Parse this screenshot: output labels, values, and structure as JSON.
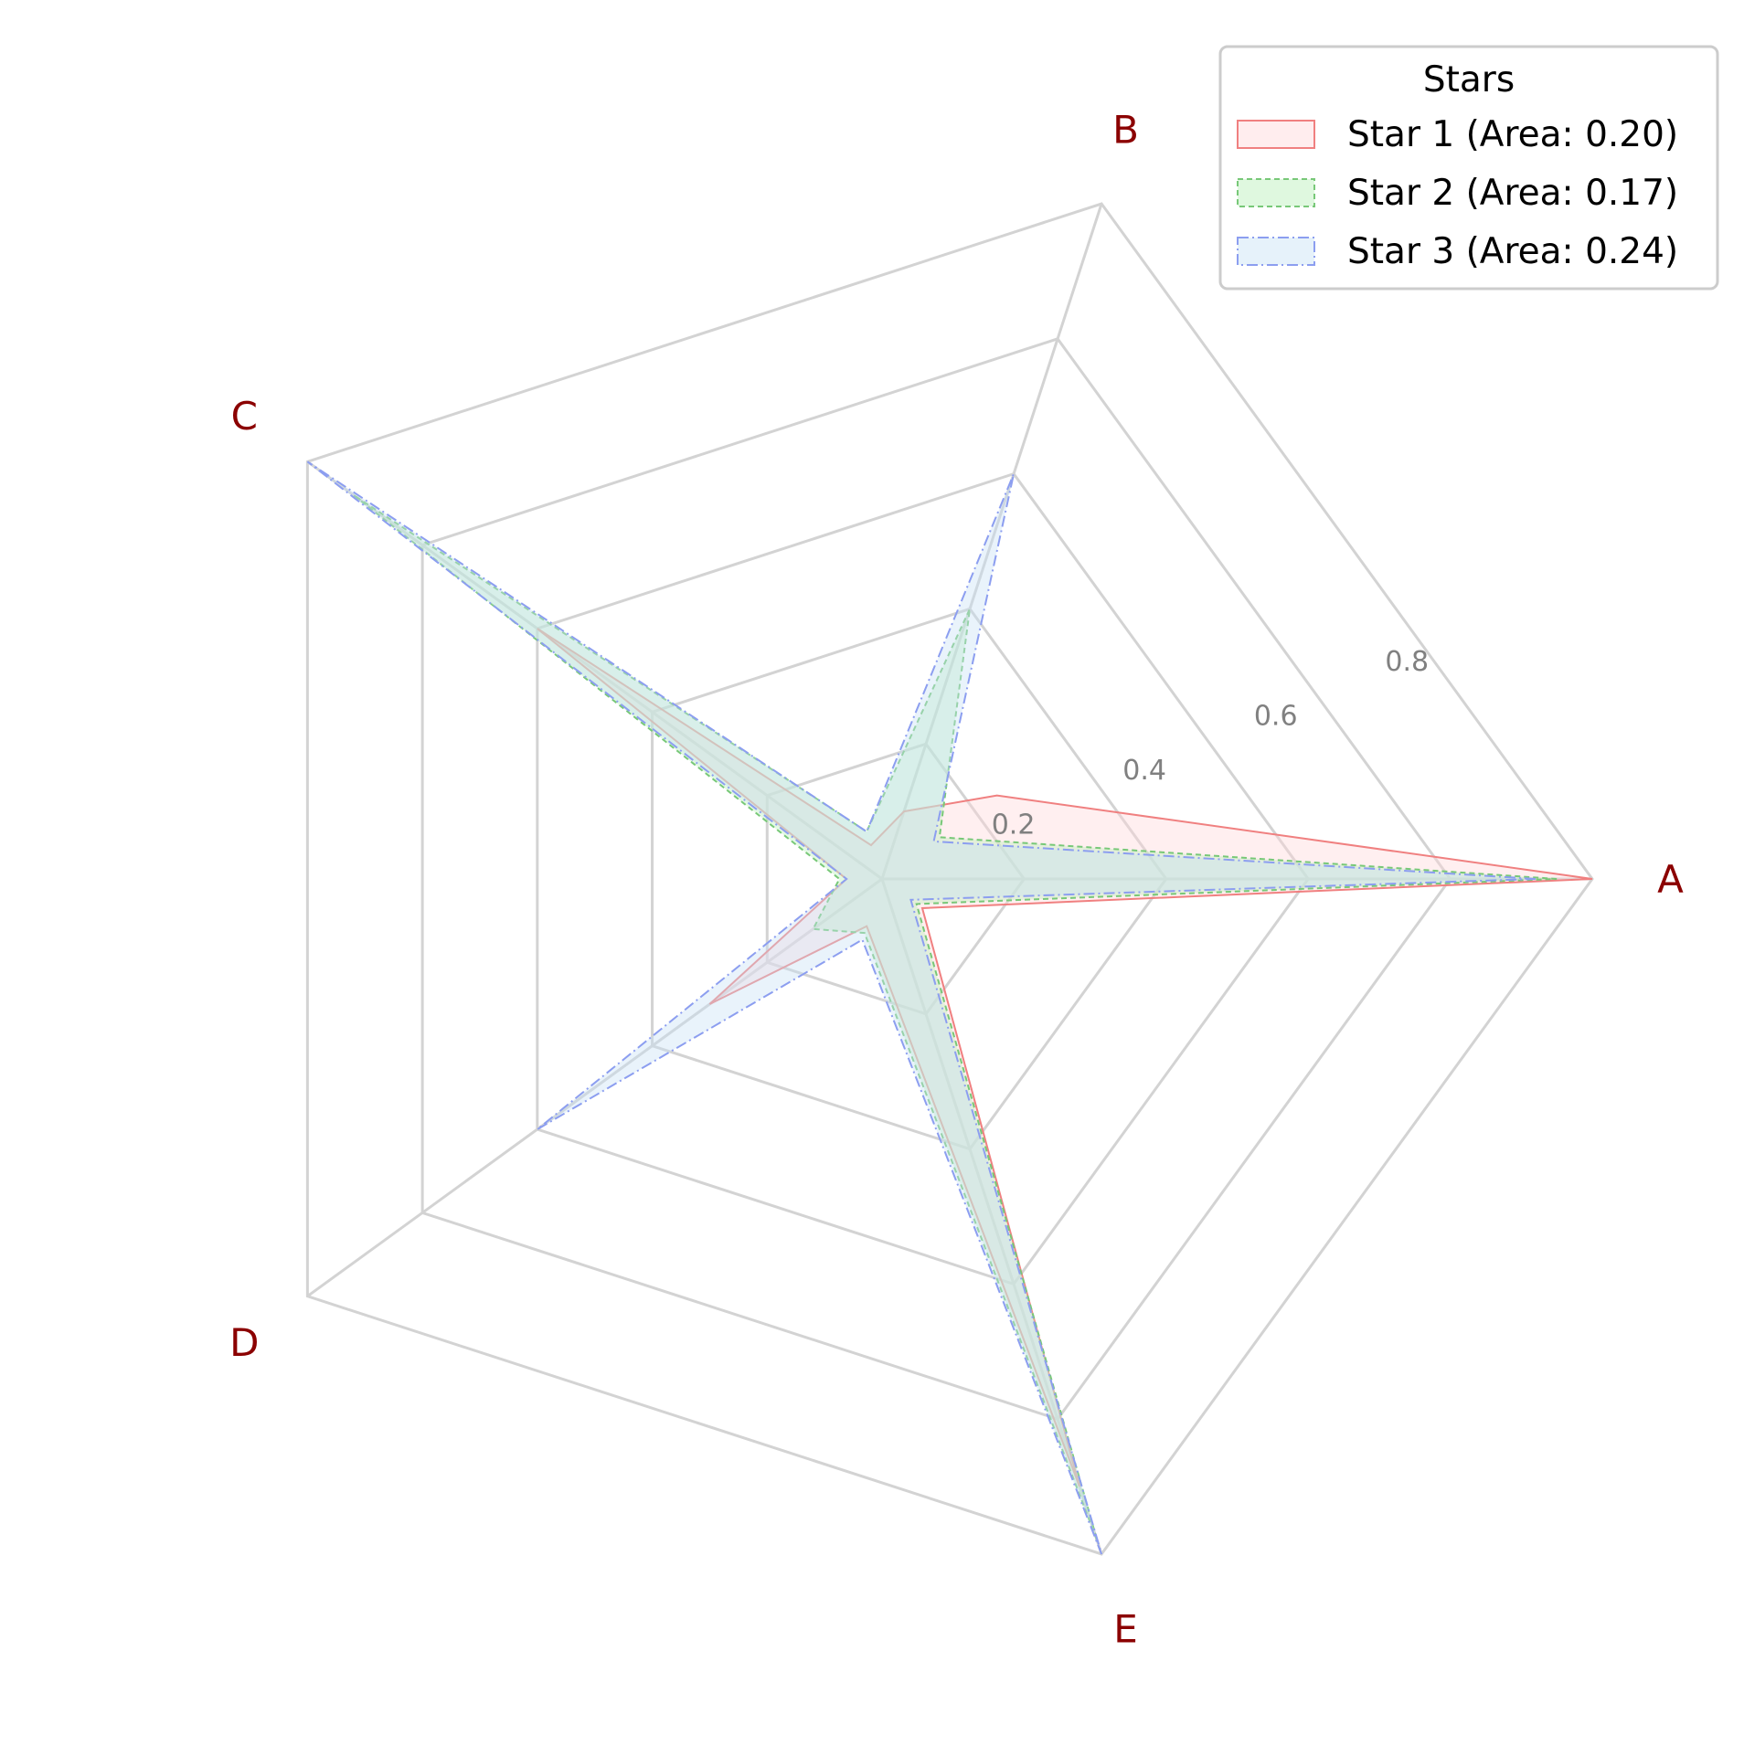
{
  "chart_data": {
    "type": "radar",
    "axes": [
      "A",
      "B",
      "C",
      "D",
      "E"
    ],
    "rlim": [
      0,
      1.0
    ],
    "tick_labels": [
      "0.2",
      "0.4",
      "0.6",
      "0.8"
    ],
    "tick_values": [
      0.2,
      0.4,
      0.6,
      0.8
    ],
    "grid_levels": [
      0.2,
      0.4,
      0.6,
      0.8,
      1.0
    ],
    "grid": true,
    "legend": {
      "title": "Stars",
      "placement": "top-right"
    },
    "series": [
      {
        "name": "Star 1 (Area: 0.20)",
        "values": [
          1.0,
          0.2,
          0.1,
          0.05,
          0.6,
          0.05,
          0.3,
          0.07,
          0.9,
          0.07
        ],
        "fill": "#ffd6d9",
        "stroke": "#f08080",
        "dash": ""
      },
      {
        "name": "Star 2 (Area: 0.17)",
        "values": [
          0.95,
          0.1,
          0.4,
          0.07,
          0.92,
          0.06,
          0.12,
          0.08,
          0.98,
          0.06
        ],
        "fill": "#b8f0b8",
        "stroke": "#78c878",
        "dash": "6,4"
      },
      {
        "name": "Star 3 (Area: 0.24)",
        "values": [
          0.92,
          0.09,
          0.6,
          0.07,
          1.0,
          0.05,
          0.6,
          0.09,
          1.0,
          0.05
        ],
        "fill": "#c8e2f5",
        "stroke": "#8c9ef0",
        "dash": "12,4,2,4"
      }
    ]
  }
}
